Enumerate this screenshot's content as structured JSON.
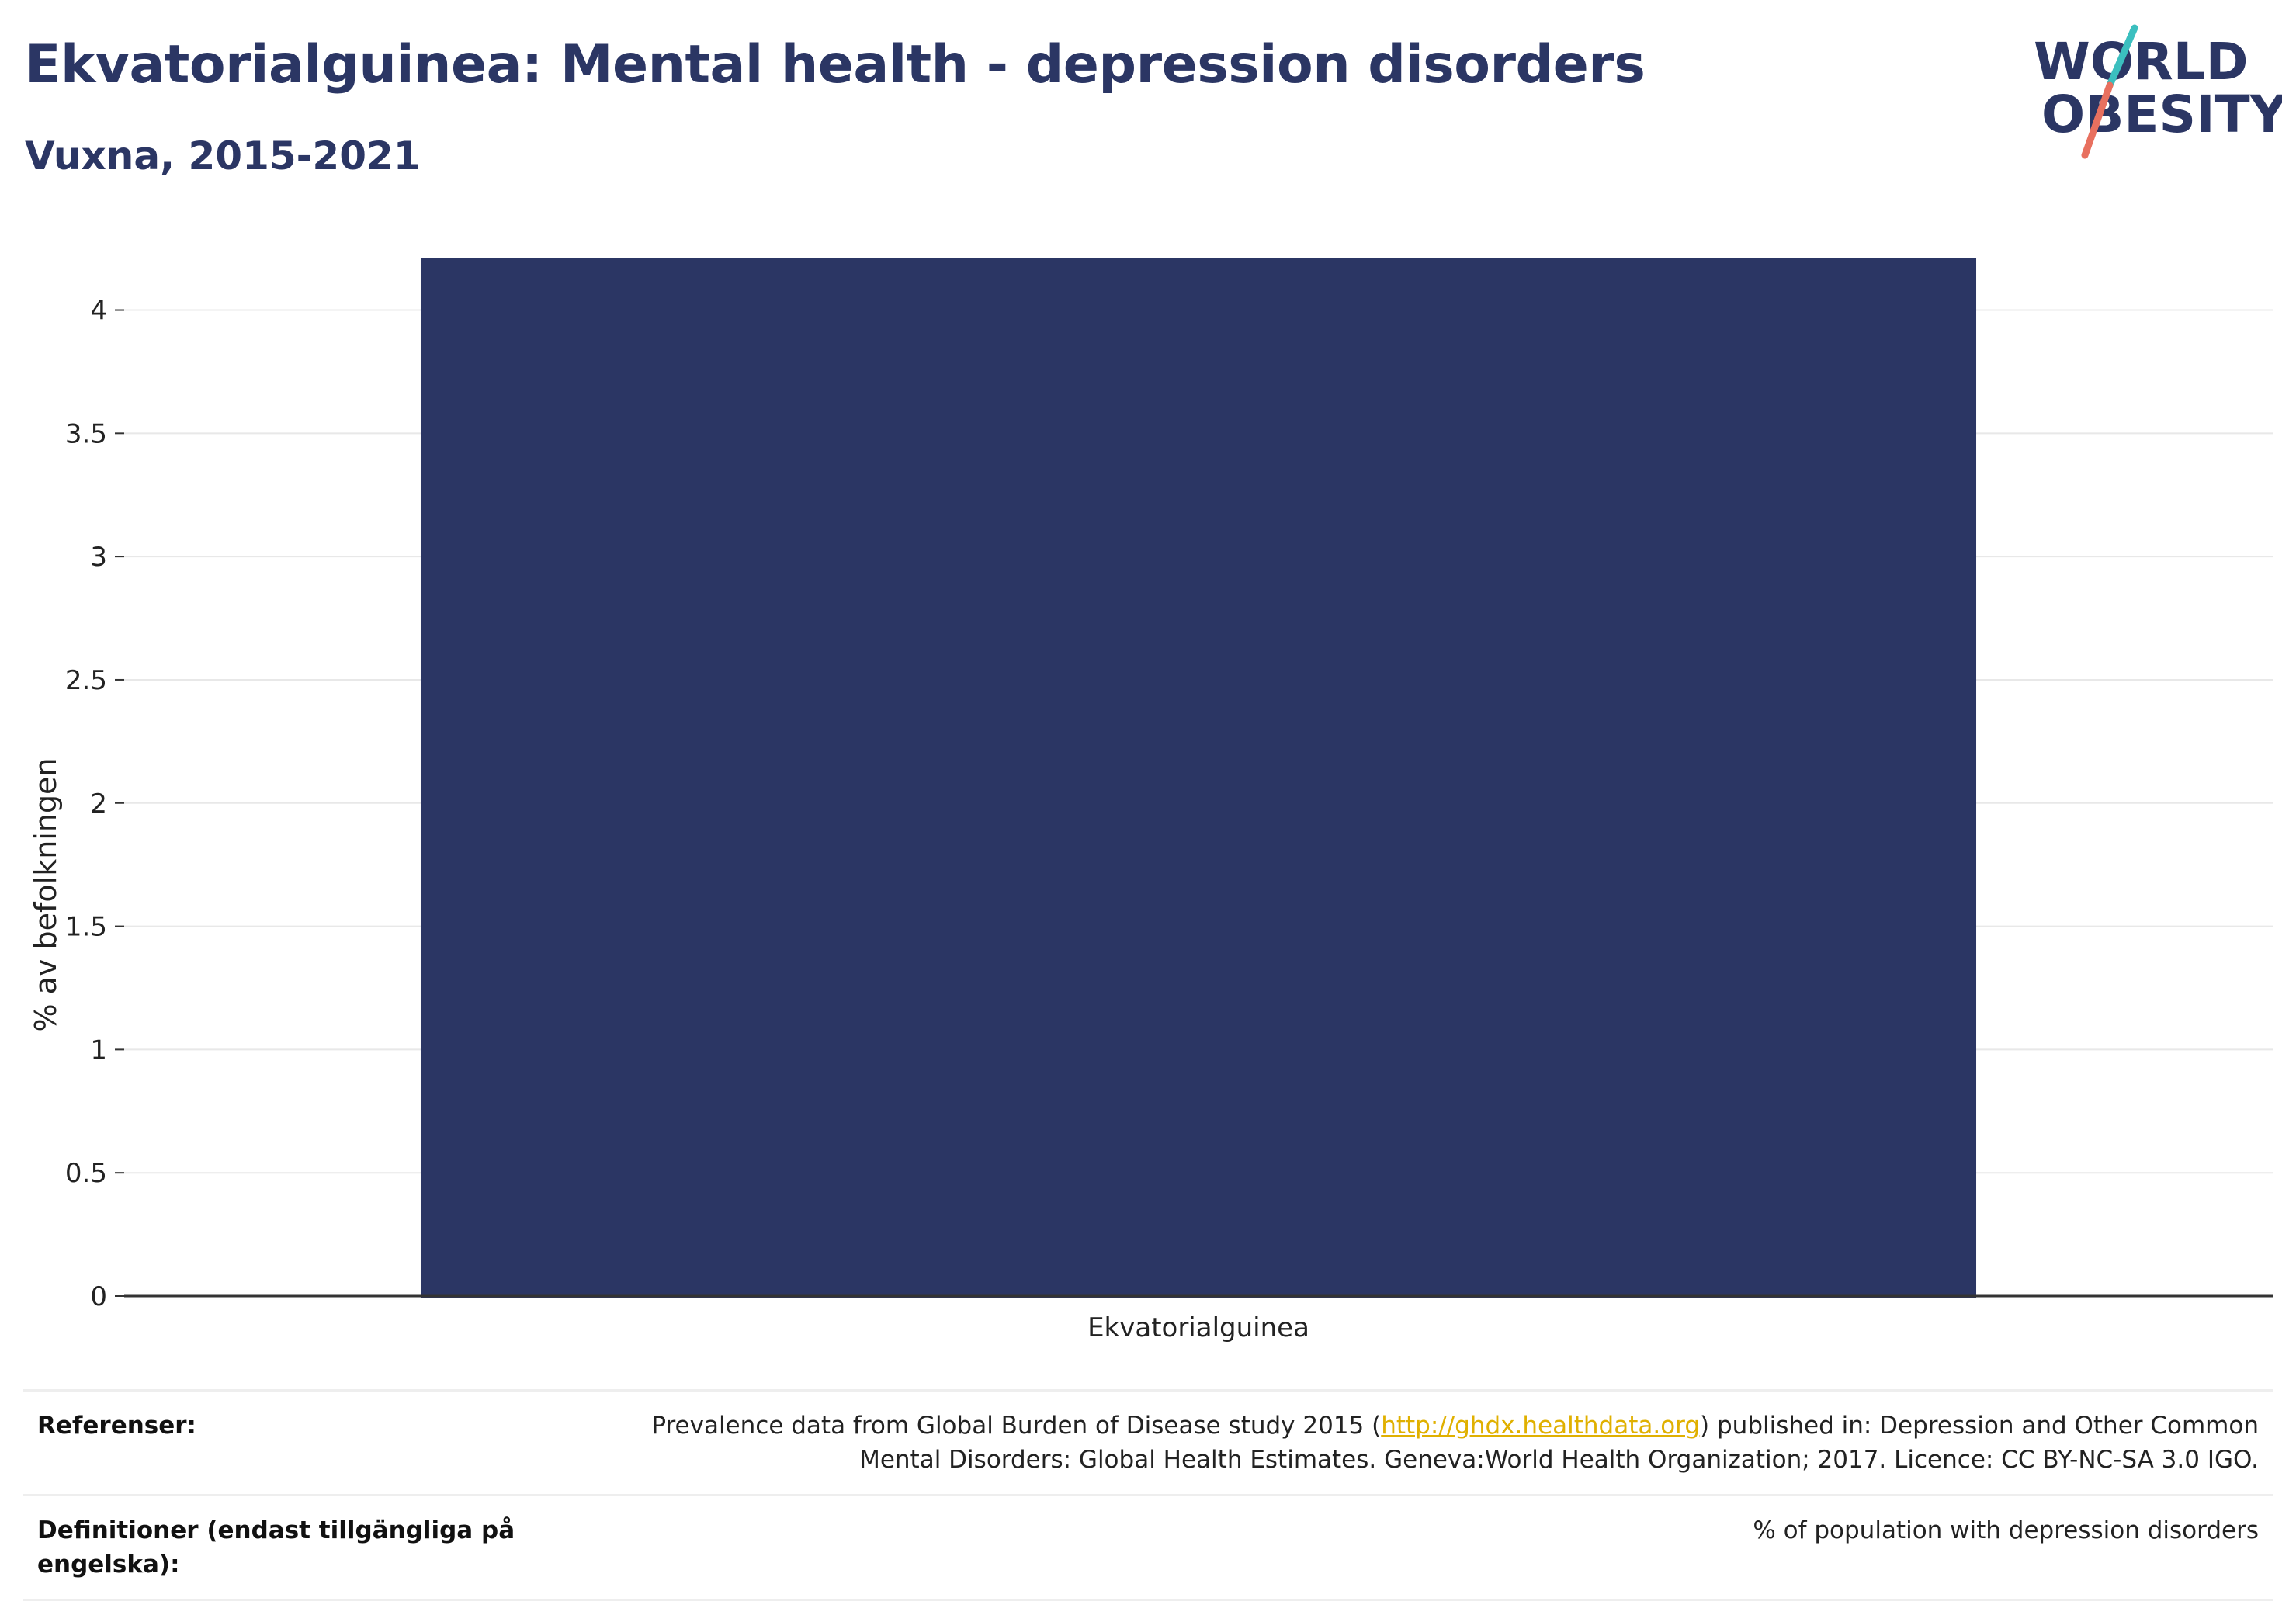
{
  "header": {
    "title": "Ekvatorialguinea: Mental health - depression disorders",
    "subtitle": "Vuxna, 2015-2021"
  },
  "logo": {
    "line1": "WORLD",
    "line2": "OBESITY",
    "text_color": "#2b3664",
    "accent_teal": "#3bbfbf",
    "accent_coral": "#e8705f"
  },
  "chart_data": {
    "type": "bar",
    "categories": [
      "Ekvatorialguinea"
    ],
    "values": [
      4.21
    ],
    "ylabel": "% av befolkningen",
    "xlabel": "",
    "ylim": [
      0,
      4.2
    ],
    "yticks": [
      0,
      0.5,
      1,
      1.5,
      2,
      2.5,
      3,
      3.5,
      4
    ],
    "ytick_labels": [
      "0",
      "0.5",
      "1",
      "1.5",
      "2",
      "2.5",
      "3",
      "3.5",
      "4"
    ],
    "bar_color": "#2b3664",
    "grid": true
  },
  "references": {
    "label": "Referenser:",
    "text_before": "Prevalence data from Global Burden of Disease study 2015 (",
    "link": "http://ghdx.healthdata.org",
    "text_after": ") published in: Depression and Other Common Mental Disorders: Global Health Estimates. Geneva:World Health Organization; 2017. Licence: CC BY-NC-SA 3.0 IGO."
  },
  "definitions": {
    "label": "Definitioner (endast tillgängliga på engelska):",
    "text": "% of population with depression disorders"
  }
}
